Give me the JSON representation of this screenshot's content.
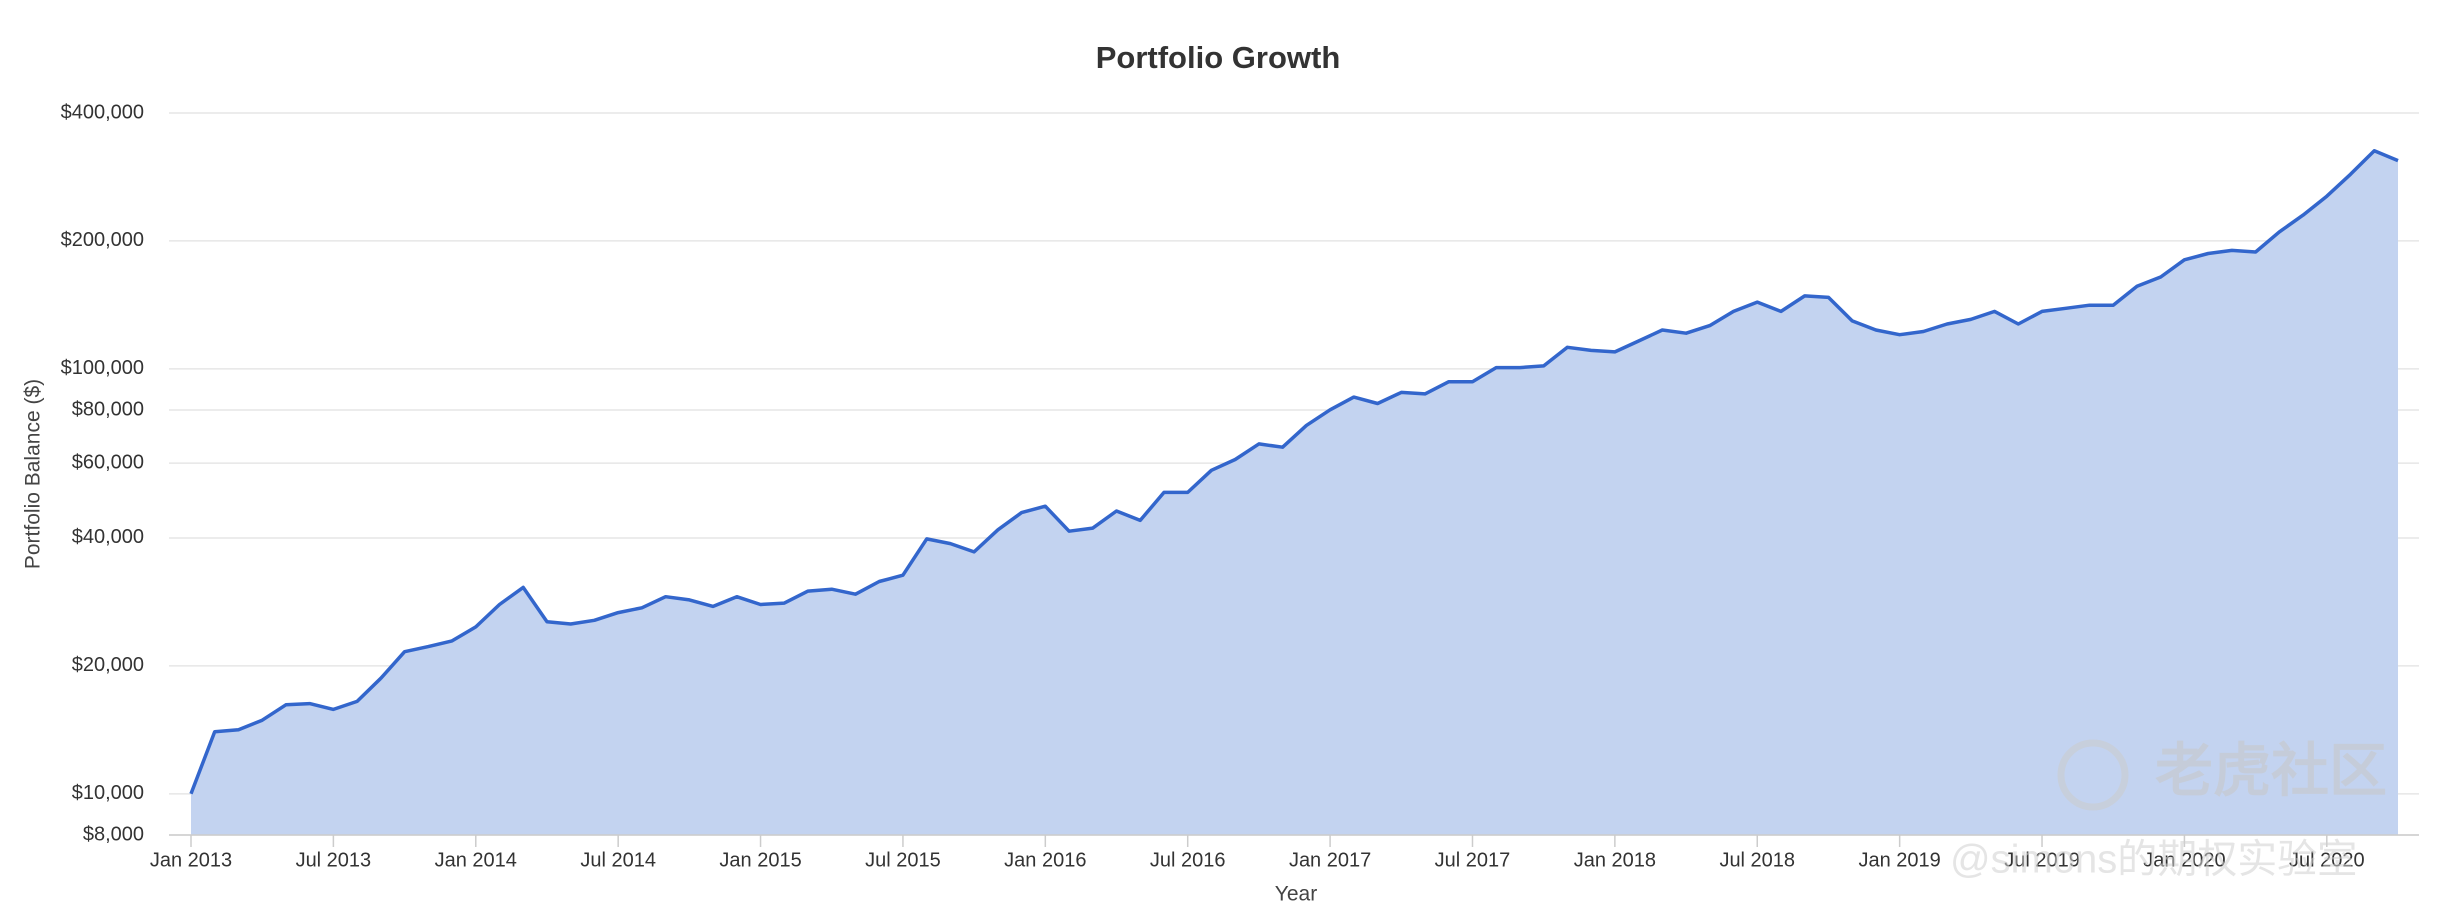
{
  "chart_data": {
    "type": "area",
    "title": "Portfolio Growth",
    "x_label": "Year",
    "y_label": "Portfolio Balance ($)",
    "log_scale": true,
    "grid": true,
    "color": "#3366cc",
    "fill_color": "#c3d3f0",
    "x": [
      "2013-01",
      "2013-02",
      "2013-03",
      "2013-04",
      "2013-05",
      "2013-06",
      "2013-07",
      "2013-08",
      "2013-09",
      "2013-10",
      "2013-11",
      "2013-12",
      "2014-01",
      "2014-02",
      "2014-03",
      "2014-04",
      "2014-05",
      "2014-06",
      "2014-07",
      "2014-08",
      "2014-09",
      "2014-10",
      "2014-11",
      "2014-12",
      "2015-01",
      "2015-02",
      "2015-03",
      "2015-04",
      "2015-05",
      "2015-06",
      "2015-07",
      "2015-08",
      "2015-09",
      "2015-10",
      "2015-11",
      "2015-12",
      "2016-01",
      "2016-02",
      "2016-03",
      "2016-04",
      "2016-05",
      "2016-06",
      "2016-07",
      "2016-08",
      "2016-09",
      "2016-10",
      "2016-11",
      "2016-12",
      "2017-01",
      "2017-02",
      "2017-03",
      "2017-04",
      "2017-05",
      "2017-06",
      "2017-07",
      "2017-08",
      "2017-09",
      "2017-10",
      "2017-11",
      "2017-12",
      "2018-01",
      "2018-02",
      "2018-03",
      "2018-04",
      "2018-05",
      "2018-06",
      "2018-07",
      "2018-08",
      "2018-09",
      "2018-10",
      "2018-11",
      "2018-12",
      "2019-01",
      "2019-02",
      "2019-03",
      "2019-04",
      "2019-05",
      "2019-06",
      "2019-07",
      "2019-08",
      "2019-09",
      "2019-10",
      "2019-11",
      "2019-12",
      "2020-01",
      "2020-02",
      "2020-03",
      "2020-04",
      "2020-05",
      "2020-06",
      "2020-07",
      "2020-08",
      "2020-09",
      "2020-10"
    ],
    "series": [
      {
        "name": "Portfolio Balance",
        "color": "#3366cc",
        "values": [
          10000,
          14000,
          14150,
          14900,
          16200,
          16300,
          15800,
          16500,
          18700,
          21600,
          22200,
          22900,
          24700,
          27900,
          30600,
          25400,
          25100,
          25600,
          26700,
          27400,
          29100,
          28600,
          27600,
          29100,
          27900,
          28100,
          30000,
          30300,
          29500,
          31600,
          32700,
          39800,
          38800,
          37100,
          41800,
          45900,
          47500,
          41500,
          42200,
          46300,
          44000,
          51200,
          51200,
          57700,
          61200,
          66600,
          65400,
          73600,
          80100,
          85800,
          82900,
          88000,
          87300,
          93300,
          93300,
          100700,
          100700,
          101600,
          112400,
          110500,
          109600,
          116300,
          123400,
          121300,
          126400,
          136500,
          143600,
          136500,
          148500,
          147300,
          129700,
          123400,
          120300,
          122400,
          127500,
          130700,
          136500,
          127500,
          136500,
          138800,
          141200,
          141200,
          156400,
          164500,
          180600,
          186800,
          190000,
          188400,
          210000,
          230000,
          254800,
          287000,
          326000,
          309000
        ]
      }
    ],
    "ylim": [
      8000,
      400000
    ],
    "yticks": [
      {
        "value": 8000,
        "label": "$8,000"
      },
      {
        "value": 10000,
        "label": "$10,000"
      },
      {
        "value": 20000,
        "label": "$20,000"
      },
      {
        "value": 40000,
        "label": "$40,000"
      },
      {
        "value": 60000,
        "label": "$60,000"
      },
      {
        "value": 80000,
        "label": "$80,000"
      },
      {
        "value": 100000,
        "label": "$100,000"
      },
      {
        "value": 200000,
        "label": "$200,000"
      },
      {
        "value": 400000,
        "label": "$400,000"
      }
    ],
    "xticks": [
      {
        "value": "2013-01",
        "label": "Jan 2013"
      },
      {
        "value": "2013-07",
        "label": "Jul 2013"
      },
      {
        "value": "2014-01",
        "label": "Jan 2014"
      },
      {
        "value": "2014-07",
        "label": "Jul 2014"
      },
      {
        "value": "2015-01",
        "label": "Jan 2015"
      },
      {
        "value": "2015-07",
        "label": "Jul 2015"
      },
      {
        "value": "2016-01",
        "label": "Jan 2016"
      },
      {
        "value": "2016-07",
        "label": "Jul 2016"
      },
      {
        "value": "2017-01",
        "label": "Jan 2017"
      },
      {
        "value": "2017-07",
        "label": "Jul 2017"
      },
      {
        "value": "2018-01",
        "label": "Jan 2018"
      },
      {
        "value": "2018-07",
        "label": "Jul 2018"
      },
      {
        "value": "2019-01",
        "label": "Jan 2019"
      },
      {
        "value": "2019-07",
        "label": "Jul 2019"
      },
      {
        "value": "2020-01",
        "label": "Jan 2020"
      },
      {
        "value": "2020-07",
        "label": "Jul 2020"
      }
    ]
  },
  "watermark": {
    "logo_text": "老虎社区",
    "handle": "@simons的期权实验室"
  }
}
